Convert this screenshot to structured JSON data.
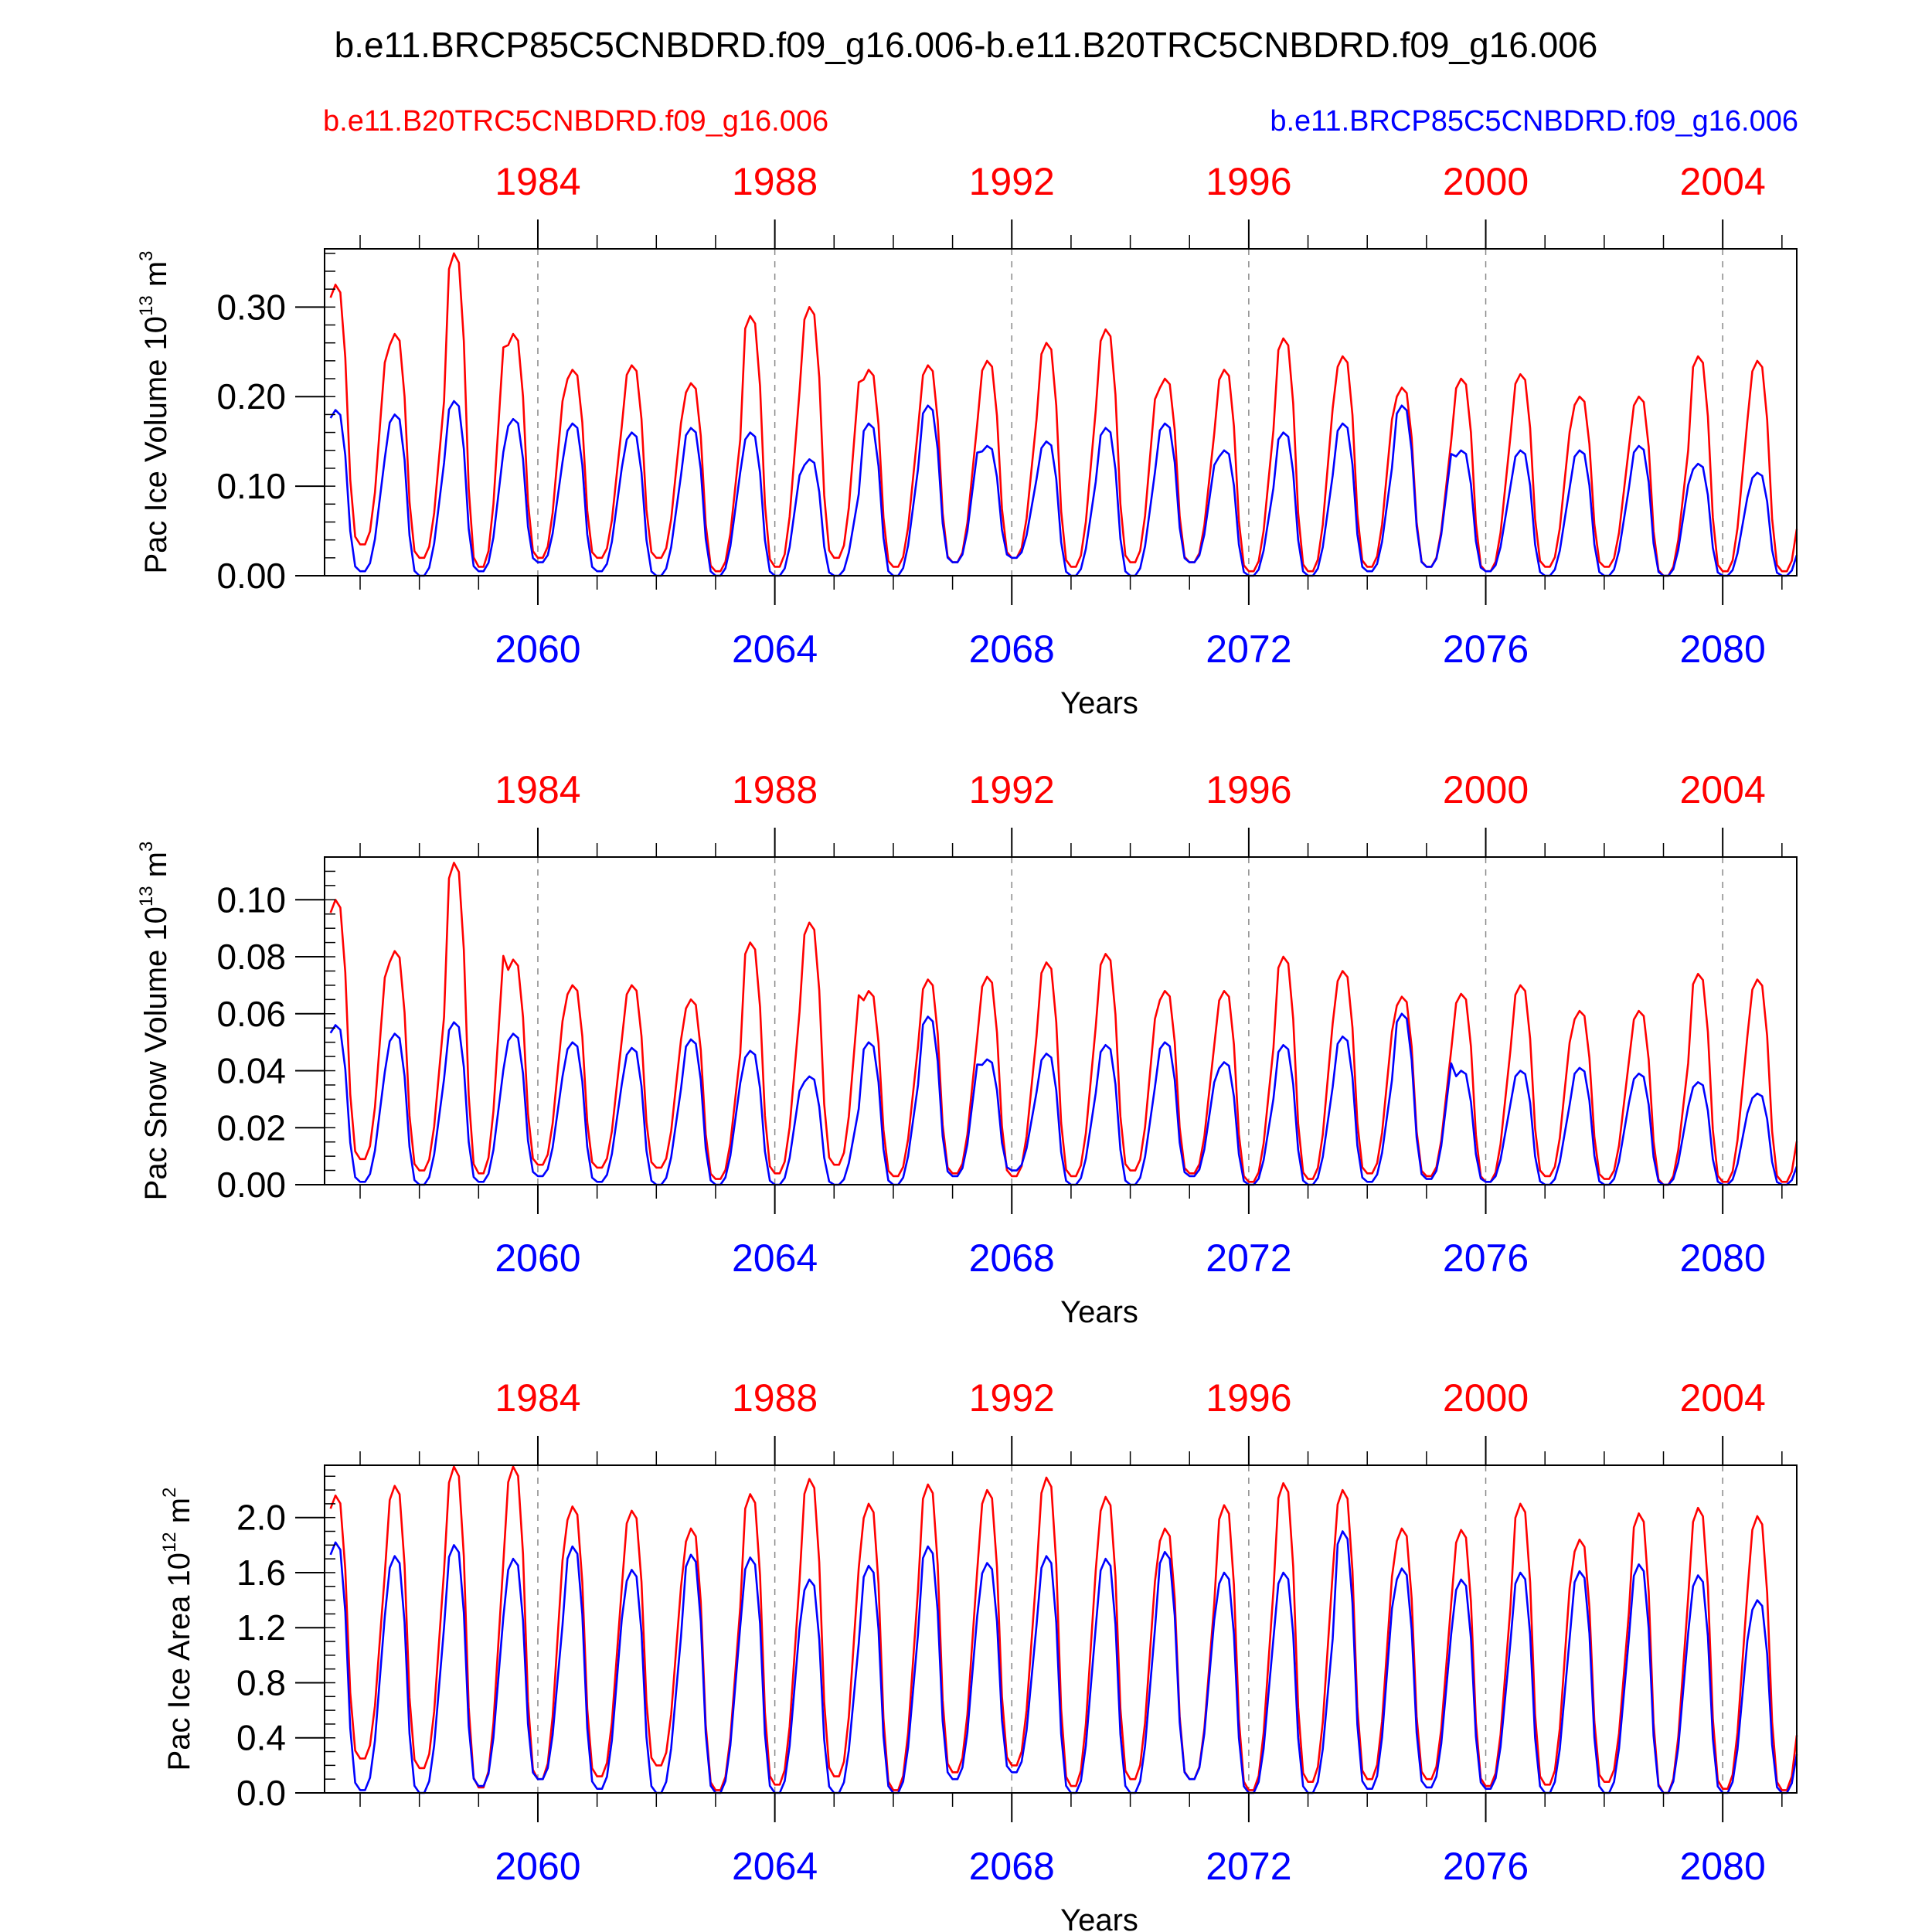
{
  "figure_title": "b.e11.BRCP85C5CNBDRD.f09_g16.006-b.e11.B20TRC5CNBDRD.f09_g16.006",
  "legend": {
    "red_case": "b.e11.B20TRC5CNBDRD.f09_g16.006",
    "blue_case": "b.e11.BRCP85C5CNBDRD.f09_g16.006"
  },
  "colors": {
    "red": "#ff0000",
    "blue": "#0000ff",
    "frame": "#000000",
    "grid": "#888888"
  },
  "chart_data": [
    {
      "type": "line",
      "ylabel": "Pac Ice Volume 10",
      "ylabel_exp": "13",
      "ylabel_unit": " m",
      "ylabel_unit_exp": "3",
      "xlabel": "Years",
      "xlim_blue": [
        2056.4,
        2081.25
      ],
      "ylim": [
        0,
        0.365
      ],
      "yticks": [
        0,
        0.1,
        0.2,
        0.3
      ],
      "ytick_labels": [
        "0.00",
        "0.10",
        "0.20",
        "0.30"
      ],
      "yminor_step": 0.02,
      "top_axis_ticks": [
        "1984",
        "1988",
        "1992",
        "1996",
        "2000",
        "2004"
      ],
      "top_axis_years": [
        1984,
        1988,
        1992,
        1996,
        2000,
        2004
      ],
      "bottom_axis_ticks": [
        "2060",
        "2064",
        "2068",
        "2072",
        "2076",
        "2080"
      ],
      "bottom_axis_years": [
        2060,
        2064,
        2068,
        2072,
        2076,
        2080
      ],
      "year_offset": 76,
      "dashed_gridlines_at": [
        2060,
        2064,
        2068,
        2072,
        2076,
        2080
      ],
      "series": [
        {
          "name": "b.e11.B20TRC5CNBDRD.f09_g16.006",
          "color": "#ff0000",
          "peaks": [
            0.325,
            0.27,
            0.36,
            0.27,
            0.23,
            0.235,
            0.215,
            0.29,
            0.3,
            0.23,
            0.235,
            0.24,
            0.26,
            0.275,
            0.22,
            0.23,
            0.265,
            0.245,
            0.21,
            0.22,
            0.225,
            0.2,
            0.2,
            0.245,
            0.24
          ],
          "troughs": [
            0.035,
            0.02,
            0.01,
            0.02,
            0.02,
            0.02,
            0.005,
            0.01,
            0.02,
            0.01,
            0.015,
            0.02,
            0.01,
            0.015,
            0.015,
            0.005,
            0.005,
            0.01,
            0.01,
            0.005,
            0.01,
            0.01,
            0.0,
            0.005,
            0.005
          ]
        },
        {
          "name": "b.e11.BRCP85C5CNBDRD.f09_g16.006",
          "color": "#0000ff",
          "peaks": [
            0.185,
            0.18,
            0.195,
            0.175,
            0.17,
            0.16,
            0.165,
            0.16,
            0.13,
            0.17,
            0.19,
            0.145,
            0.15,
            0.165,
            0.17,
            0.14,
            0.16,
            0.17,
            0.19,
            0.14,
            0.14,
            0.14,
            0.145,
            0.125,
            0.115
          ],
          "troughs": [
            0.005,
            0.0,
            0.005,
            0.015,
            0.005,
            0.0,
            0.0,
            0.0,
            0.0,
            0.0,
            0.015,
            0.02,
            0.0,
            0.0,
            0.015,
            0.0,
            0.0,
            0.005,
            0.01,
            0.005,
            0.0,
            0.0,
            0.0,
            0.0,
            0.0
          ]
        }
      ]
    },
    {
      "type": "line",
      "ylabel": "Pac Snow Volume 10",
      "ylabel_exp": "13",
      "ylabel_unit": " m",
      "ylabel_unit_exp": "3",
      "xlabel": "Years",
      "xlim_blue": [
        2056.4,
        2081.25
      ],
      "ylim": [
        0,
        0.115
      ],
      "yticks": [
        0,
        0.02,
        0.04,
        0.06,
        0.08,
        0.1
      ],
      "ytick_labels": [
        "0.00",
        "0.02",
        "0.04",
        "0.06",
        "0.08",
        "0.10"
      ],
      "yminor_step": 0.005,
      "top_axis_ticks": [
        "1984",
        "1988",
        "1992",
        "1996",
        "2000",
        "2004"
      ],
      "top_axis_years": [
        1984,
        1988,
        1992,
        1996,
        2000,
        2004
      ],
      "bottom_axis_ticks": [
        "2060",
        "2064",
        "2068",
        "2072",
        "2076",
        "2080"
      ],
      "bottom_axis_years": [
        2060,
        2064,
        2068,
        2072,
        2076,
        2080
      ],
      "year_offset": 76,
      "dashed_gridlines_at": [
        2060,
        2064,
        2068,
        2072,
        2076,
        2080
      ],
      "series": [
        {
          "name": "b.e11.B20TRC5CNBDRD.f09_g16.006",
          "color": "#ff0000",
          "peaks": [
            0.1,
            0.082,
            0.113,
            0.079,
            0.07,
            0.07,
            0.065,
            0.085,
            0.092,
            0.068,
            0.072,
            0.073,
            0.078,
            0.081,
            0.068,
            0.068,
            0.08,
            0.075,
            0.066,
            0.067,
            0.07,
            0.061,
            0.061,
            0.074,
            0.072
          ],
          "troughs": [
            0.009,
            0.005,
            0.004,
            0.007,
            0.006,
            0.006,
            0.002,
            0.004,
            0.007,
            0.003,
            0.004,
            0.003,
            0.003,
            0.005,
            0.004,
            0.001,
            0.002,
            0.004,
            0.003,
            0.001,
            0.003,
            0.002,
            0.0,
            0.001,
            0.001
          ]
        },
        {
          "name": "b.e11.BRCP85C5CNBDRD.f09_g16.006",
          "color": "#0000ff",
          "peaks": [
            0.056,
            0.053,
            0.057,
            0.053,
            0.05,
            0.048,
            0.051,
            0.047,
            0.038,
            0.05,
            0.059,
            0.044,
            0.046,
            0.049,
            0.05,
            0.043,
            0.049,
            0.052,
            0.06,
            0.04,
            0.04,
            0.041,
            0.039,
            0.036,
            0.032
          ],
          "troughs": [
            0.001,
            0.0,
            0.001,
            0.003,
            0.001,
            0.0,
            0.0,
            0.0,
            0.0,
            0.0,
            0.003,
            0.005,
            0.0,
            0.0,
            0.003,
            0.0,
            0.0,
            0.001,
            0.002,
            0.001,
            0.0,
            0.0,
            0.0,
            0.0,
            0.0
          ]
        }
      ]
    },
    {
      "type": "line",
      "ylabel": "Pac Ice Area 10",
      "ylabel_exp": "12",
      "ylabel_unit": " m",
      "ylabel_unit_exp": "2",
      "xlabel": "Years",
      "xlim_blue": [
        2056.4,
        2081.25
      ],
      "ylim": [
        0,
        2.38
      ],
      "yticks": [
        0,
        0.4,
        0.8,
        1.2,
        1.6,
        2.0
      ],
      "ytick_labels": [
        "0.0",
        "0.4",
        "0.8",
        "1.2",
        "1.6",
        "2.0"
      ],
      "yminor_step": 0.1,
      "top_axis_ticks": [
        "1984",
        "1988",
        "1992",
        "1996",
        "2000",
        "2004"
      ],
      "top_axis_years": [
        1984,
        1988,
        1992,
        1996,
        2000,
        2004
      ],
      "bottom_axis_ticks": [
        "2060",
        "2064",
        "2068",
        "2072",
        "2076",
        "2080"
      ],
      "bottom_axis_years": [
        2060,
        2064,
        2068,
        2072,
        2076,
        2080
      ],
      "year_offset": 76,
      "dashed_gridlines_at": [
        2060,
        2064,
        2068,
        2072,
        2076,
        2080
      ],
      "series": [
        {
          "name": "b.e11.B20TRC5CNBDRD.f09_g16.006",
          "color": "#ff0000",
          "peaks": [
            2.16,
            2.23,
            2.37,
            2.37,
            2.08,
            2.05,
            1.92,
            2.17,
            2.28,
            2.1,
            2.24,
            2.2,
            2.29,
            2.15,
            1.92,
            2.09,
            2.25,
            2.2,
            1.92,
            1.91,
            2.1,
            1.84,
            2.03,
            2.07,
            2.01
          ],
          "troughs": [
            0.25,
            0.18,
            0.04,
            0.1,
            0.12,
            0.2,
            0.02,
            0.06,
            0.12,
            0.02,
            0.15,
            0.2,
            0.05,
            0.1,
            0.1,
            0.02,
            0.08,
            0.1,
            0.1,
            0.05,
            0.06,
            0.08,
            0.0,
            0.03,
            0.02
          ]
        },
        {
          "name": "b.e11.BRCP85C5CNBDRD.f09_g16.006",
          "color": "#0000ff",
          "peaks": [
            1.82,
            1.72,
            1.8,
            1.7,
            1.79,
            1.62,
            1.73,
            1.71,
            1.55,
            1.65,
            1.79,
            1.67,
            1.72,
            1.7,
            1.75,
            1.6,
            1.6,
            1.9,
            1.63,
            1.55,
            1.6,
            1.61,
            1.66,
            1.58,
            1.4
          ],
          "troughs": [
            0.02,
            0.0,
            0.05,
            0.1,
            0.03,
            0.0,
            0.0,
            0.0,
            0.0,
            0.0,
            0.1,
            0.15,
            0.0,
            0.0,
            0.1,
            0.0,
            0.0,
            0.03,
            0.04,
            0.03,
            0.0,
            0.0,
            0.0,
            0.0,
            0.0
          ]
        }
      ]
    }
  ]
}
